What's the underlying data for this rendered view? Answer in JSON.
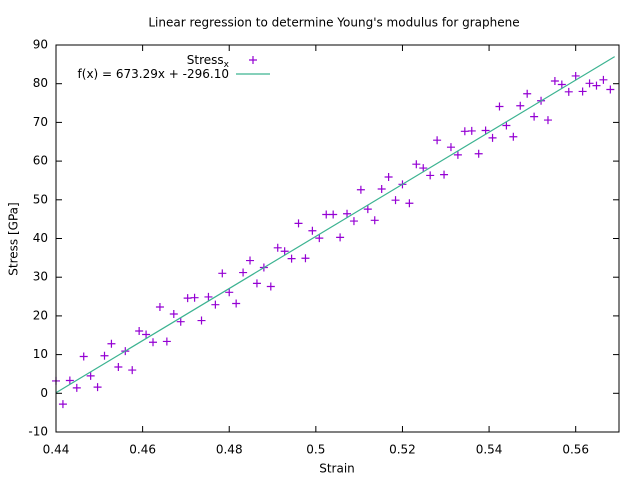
{
  "chart_data": {
    "type": "scatter",
    "title": "Linear regression to determine Young's modulus for graphene",
    "x_label": "Strain",
    "y_label": "Stress [GPa]",
    "xlim": [
      0.44,
      0.57
    ],
    "ylim": [
      -10,
      90
    ],
    "xticks": [
      0.44,
      0.46,
      0.48,
      0.5,
      0.52,
      0.54,
      0.56
    ],
    "yticks": [
      -10,
      0,
      10,
      20,
      30,
      40,
      50,
      60,
      70,
      80,
      90
    ],
    "legend": "top-left",
    "series": [
      {
        "name": "Stress",
        "subscript": "x",
        "color": "#9400d3",
        "marker": "plus",
        "x": [
          0.44,
          0.4416,
          0.4432,
          0.4448,
          0.4464,
          0.448,
          0.4496,
          0.4512,
          0.4528,
          0.4544,
          0.456,
          0.4576,
          0.4592,
          0.4608,
          0.4624,
          0.464,
          0.4656,
          0.4672,
          0.4688,
          0.4704,
          0.472,
          0.4736,
          0.4752,
          0.4768,
          0.4784,
          0.48,
          0.4816,
          0.4832,
          0.4848,
          0.4864,
          0.488,
          0.4896,
          0.4912,
          0.4928,
          0.4944,
          0.496,
          0.4976,
          0.4992,
          0.5008,
          0.5024,
          0.504,
          0.5056,
          0.5072,
          0.5088,
          0.5104,
          0.512,
          0.5136,
          0.5152,
          0.5168,
          0.5184,
          0.52,
          0.5216,
          0.5232,
          0.5248,
          0.5264,
          0.528,
          0.5296,
          0.5312,
          0.5328,
          0.5344,
          0.536,
          0.5376,
          0.5392,
          0.5408,
          0.5424,
          0.544,
          0.5456,
          0.5472,
          0.5488,
          0.5504,
          0.552,
          0.5536,
          0.5552,
          0.5568,
          0.5584,
          0.56,
          0.5616,
          0.5632,
          0.5648,
          0.5664,
          0.568
        ],
        "values": [
          3.2,
          -2.8,
          3.3,
          1.4,
          9.5,
          4.5,
          1.6,
          9.7,
          12.8,
          6.8,
          10.9,
          6.0,
          16.1,
          15.2,
          13.2,
          22.3,
          13.4,
          20.5,
          18.5,
          24.6,
          24.7,
          18.8,
          24.9,
          22.9,
          31.0,
          26.1,
          23.2,
          31.2,
          34.3,
          28.4,
          32.5,
          27.6,
          37.6,
          36.7,
          34.8,
          43.9,
          34.9,
          42.0,
          40.1,
          46.2,
          46.2,
          40.3,
          46.4,
          44.5,
          52.6,
          47.6,
          44.7,
          52.8,
          55.9,
          49.9,
          54.0,
          49.1,
          59.2,
          58.2,
          56.3,
          65.4,
          56.5,
          63.6,
          61.6,
          67.7,
          67.8,
          61.9,
          67.9,
          66.0,
          74.1,
          69.2,
          66.3,
          74.3,
          77.4,
          71.5,
          75.6,
          70.6,
          80.7,
          79.8,
          77.9,
          82.0,
          78.0,
          80.1,
          79.5,
          81.0,
          78.5
        ]
      },
      {
        "name": "f(x) = 673.29x + -296.10",
        "color": "#3cb391",
        "marker": "line",
        "x": [
          0.44,
          0.569
        ],
        "values": [
          0.15,
          87.0
        ]
      }
    ]
  }
}
